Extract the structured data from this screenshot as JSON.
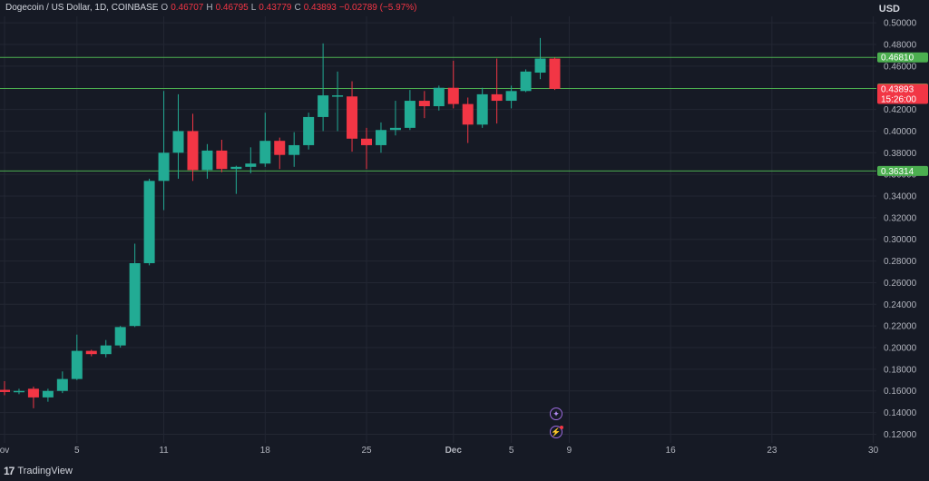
{
  "header": {
    "symbol": "Dogecoin / US Dollar, 1D, COINBASE",
    "open_label": "O",
    "open": "0.46707",
    "high_label": "H",
    "high": "0.46795",
    "low_label": "L",
    "low": "0.43779",
    "close_label": "C",
    "close": "0.43893",
    "change": "−0.02789 (−5.97%)"
  },
  "currency": "USD",
  "brand": "TradingView",
  "colors": {
    "up": "#22ab94",
    "down": "#f23645",
    "level": "#4caf50",
    "background": "#161a25"
  },
  "chart_data": {
    "type": "candlestick",
    "y_ticks": [
      "0.12000",
      "0.14000",
      "0.16000",
      "0.18000",
      "0.20000",
      "0.22000",
      "0.24000",
      "0.26000",
      "0.28000",
      "0.30000",
      "0.32000",
      "0.34000",
      "0.36000",
      "0.38000",
      "0.40000",
      "0.42000",
      "0.46000",
      "0.48000",
      "0.50000"
    ],
    "ylim": [
      0.112,
      0.506
    ],
    "x_ticks": [
      {
        "label": "ov",
        "day": 0
      },
      {
        "label": "5",
        "day": 5
      },
      {
        "label": "11",
        "day": 11
      },
      {
        "label": "18",
        "day": 18
      },
      {
        "label": "25",
        "day": 25
      },
      {
        "label": "Dec",
        "day": 31
      },
      {
        "label": "5",
        "day": 35
      },
      {
        "label": "9",
        "day": 39
      },
      {
        "label": "16",
        "day": 46
      },
      {
        "label": "23",
        "day": 53
      },
      {
        "label": "30",
        "day": 60
      }
    ],
    "candles": [
      {
        "day": 0,
        "o": 0.161,
        "h": 0.169,
        "l": 0.156,
        "c": 0.159
      },
      {
        "day": 1,
        "o": 0.159,
        "h": 0.162,
        "l": 0.157,
        "c": 0.16
      },
      {
        "day": 2,
        "o": 0.162,
        "h": 0.164,
        "l": 0.144,
        "c": 0.154
      },
      {
        "day": 3,
        "o": 0.154,
        "h": 0.162,
        "l": 0.15,
        "c": 0.16
      },
      {
        "day": 4,
        "o": 0.16,
        "h": 0.178,
        "l": 0.158,
        "c": 0.171
      },
      {
        "day": 5,
        "o": 0.171,
        "h": 0.212,
        "l": 0.17,
        "c": 0.197
      },
      {
        "day": 6,
        "o": 0.197,
        "h": 0.198,
        "l": 0.192,
        "c": 0.194
      },
      {
        "day": 7,
        "o": 0.194,
        "h": 0.207,
        "l": 0.191,
        "c": 0.202
      },
      {
        "day": 8,
        "o": 0.202,
        "h": 0.22,
        "l": 0.2,
        "c": 0.219
      },
      {
        "day": 9,
        "o": 0.22,
        "h": 0.296,
        "l": 0.219,
        "c": 0.278
      },
      {
        "day": 10,
        "o": 0.278,
        "h": 0.356,
        "l": 0.276,
        "c": 0.354
      },
      {
        "day": 11,
        "o": 0.354,
        "h": 0.437,
        "l": 0.327,
        "c": 0.38
      },
      {
        "day": 12,
        "o": 0.38,
        "h": 0.434,
        "l": 0.356,
        "c": 0.4
      },
      {
        "day": 13,
        "o": 0.4,
        "h": 0.416,
        "l": 0.354,
        "c": 0.364
      },
      {
        "day": 14,
        "o": 0.364,
        "h": 0.388,
        "l": 0.356,
        "c": 0.382
      },
      {
        "day": 15,
        "o": 0.382,
        "h": 0.392,
        "l": 0.362,
        "c": 0.365
      },
      {
        "day": 16,
        "o": 0.365,
        "h": 0.368,
        "l": 0.342,
        "c": 0.367
      },
      {
        "day": 17,
        "o": 0.367,
        "h": 0.385,
        "l": 0.361,
        "c": 0.37
      },
      {
        "day": 18,
        "o": 0.37,
        "h": 0.417,
        "l": 0.367,
        "c": 0.391
      },
      {
        "day": 19,
        "o": 0.391,
        "h": 0.394,
        "l": 0.365,
        "c": 0.378
      },
      {
        "day": 20,
        "o": 0.378,
        "h": 0.399,
        "l": 0.367,
        "c": 0.387
      },
      {
        "day": 21,
        "o": 0.387,
        "h": 0.417,
        "l": 0.383,
        "c": 0.413
      },
      {
        "day": 22,
        "o": 0.413,
        "h": 0.481,
        "l": 0.4,
        "c": 0.433
      },
      {
        "day": 23,
        "o": 0.432,
        "h": 0.455,
        "l": 0.4,
        "c": 0.433
      },
      {
        "day": 24,
        "o": 0.432,
        "h": 0.446,
        "l": 0.381,
        "c": 0.393
      },
      {
        "day": 25,
        "o": 0.393,
        "h": 0.403,
        "l": 0.365,
        "c": 0.387
      },
      {
        "day": 26,
        "o": 0.387,
        "h": 0.408,
        "l": 0.38,
        "c": 0.401
      },
      {
        "day": 27,
        "o": 0.401,
        "h": 0.428,
        "l": 0.396,
        "c": 0.403
      },
      {
        "day": 28,
        "o": 0.403,
        "h": 0.438,
        "l": 0.401,
        "c": 0.428
      },
      {
        "day": 29,
        "o": 0.428,
        "h": 0.437,
        "l": 0.412,
        "c": 0.423
      },
      {
        "day": 30,
        "o": 0.423,
        "h": 0.442,
        "l": 0.419,
        "c": 0.44
      },
      {
        "day": 31,
        "o": 0.44,
        "h": 0.465,
        "l": 0.421,
        "c": 0.425
      },
      {
        "day": 32,
        "o": 0.425,
        "h": 0.431,
        "l": 0.389,
        "c": 0.406
      },
      {
        "day": 33,
        "o": 0.406,
        "h": 0.44,
        "l": 0.403,
        "c": 0.434
      },
      {
        "day": 34,
        "o": 0.434,
        "h": 0.467,
        "l": 0.407,
        "c": 0.428
      },
      {
        "day": 35,
        "o": 0.428,
        "h": 0.442,
        "l": 0.421,
        "c": 0.437
      },
      {
        "day": 36,
        "o": 0.437,
        "h": 0.457,
        "l": 0.436,
        "c": 0.455
      },
      {
        "day": 37,
        "o": 0.454,
        "h": 0.486,
        "l": 0.448,
        "c": 0.467
      },
      {
        "day": 38,
        "o": 0.467,
        "h": 0.468,
        "l": 0.438,
        "c": 0.439
      }
    ],
    "levels": [
      {
        "value": 0.4681,
        "label": "0.46810"
      },
      {
        "value": 0.43933,
        "label": "0.43933"
      },
      {
        "value": 0.36314,
        "label": "0.36314"
      }
    ],
    "last_price": {
      "value": 0.43893,
      "label": "0.43893",
      "countdown": "15:26:00"
    }
  }
}
